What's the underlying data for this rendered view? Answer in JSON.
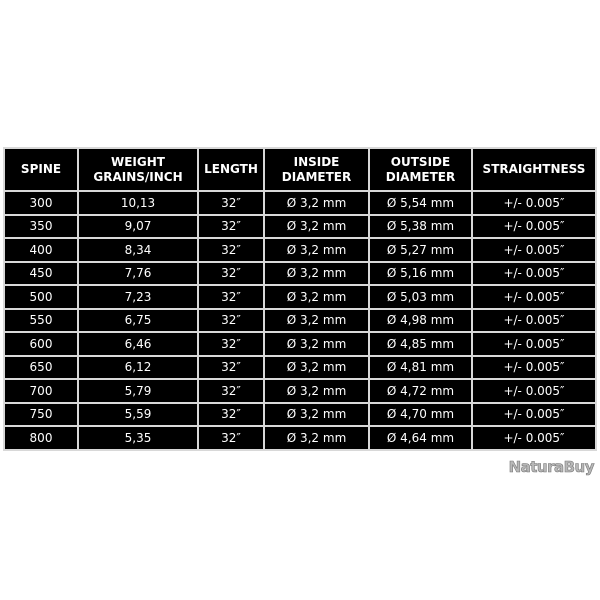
{
  "table": {
    "headers": [
      [
        "SPINE"
      ],
      [
        "WEIGHT",
        "GRAINS/INCH"
      ],
      [
        "LENGTH"
      ],
      [
        "INSIDE",
        "DIAMETER"
      ],
      [
        "OUTSIDE",
        "DIAMETER"
      ],
      [
        "STRAIGHTNESS"
      ]
    ],
    "rows": [
      [
        "300",
        "10,13",
        "32″",
        "Ø 3,2 mm",
        "Ø 5,54 mm",
        "+/- 0.005″"
      ],
      [
        "350",
        "9,07",
        "32″",
        "Ø 3,2 mm",
        "Ø 5,38 mm",
        "+/- 0.005″"
      ],
      [
        "400",
        "8,34",
        "32″",
        "Ø 3,2 mm",
        "Ø 5,27 mm",
        "+/- 0.005″"
      ],
      [
        "450",
        "7,76",
        "32″",
        "Ø 3,2 mm",
        "Ø 5,16 mm",
        "+/- 0.005″"
      ],
      [
        "500",
        "7,23",
        "32″",
        "Ø 3,2 mm",
        "Ø 5,03 mm",
        "+/- 0.005″"
      ],
      [
        "550",
        "6,75",
        "32″",
        "Ø 3,2 mm",
        "Ø 4,98 mm",
        "+/- 0.005″"
      ],
      [
        "600",
        "6,46",
        "32″",
        "Ø 3,2 mm",
        "Ø 4,85 mm",
        "+/- 0.005″"
      ],
      [
        "650",
        "6,12",
        "32″",
        "Ø 3,2 mm",
        "Ø 4,81 mm",
        "+/- 0.005″"
      ],
      [
        "700",
        "5,79",
        "32″",
        "Ø 3,2 mm",
        "Ø 4,72 mm",
        "+/- 0.005″"
      ],
      [
        "750",
        "5,59",
        "32″",
        "Ø 3,2 mm",
        "Ø 4,70 mm",
        "+/- 0.005″"
      ],
      [
        "800",
        "5,35",
        "32″",
        "Ø 3,2 mm",
        "Ø 4,64 mm",
        "+/- 0.005″"
      ]
    ]
  },
  "watermark": "NaturaBuy",
  "colors": {
    "background": "#000000",
    "text": "#ffffff",
    "border": "#d8d8d8"
  }
}
